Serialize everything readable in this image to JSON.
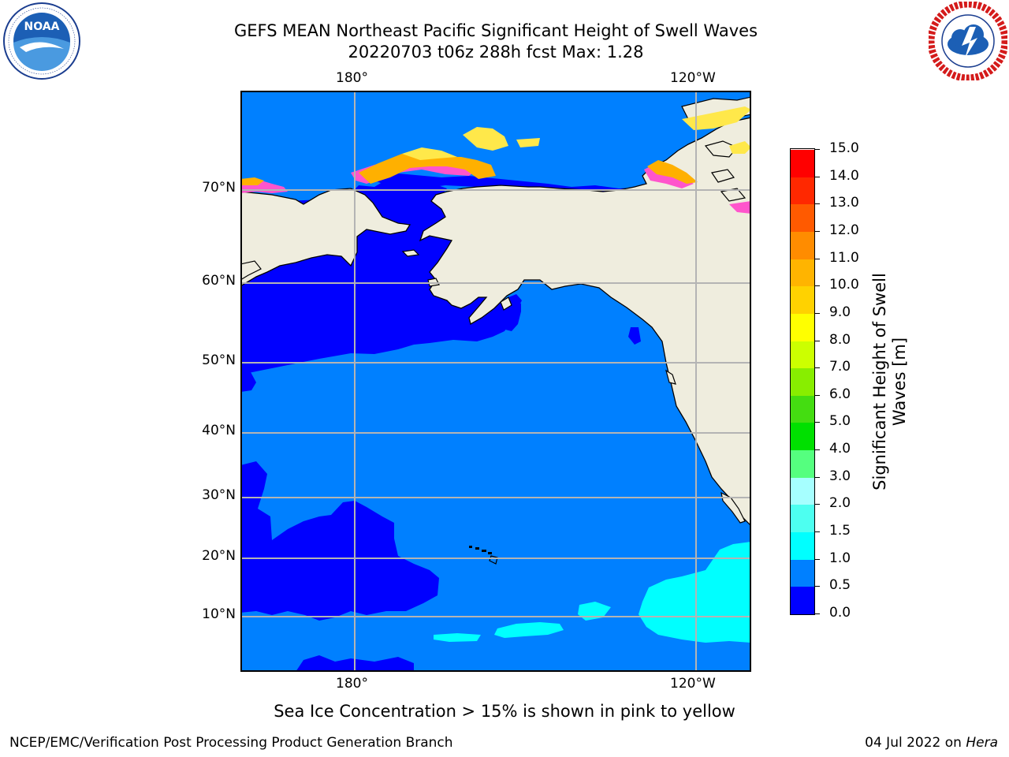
{
  "title_line1": "GEFS MEAN Northeast Pacific Significant Height of Swell Waves",
  "title_line2": "20220703 t06z 288h fcst   Max: 1.28",
  "logos": [
    {
      "name": "noaa-logo",
      "text": "NOAA",
      "ring_text": "NATIONAL OCEANIC AND ATMOSPHERIC ADMINISTRATION · U.S. DEPARTMENT OF COMMERCE"
    },
    {
      "name": "nws-logo",
      "ring_text": "NATIONAL WEATHER SERVICE"
    }
  ],
  "map": {
    "lon_labels_top": [
      "180°",
      "120°W"
    ],
    "lon_labels_bottom": [
      "180°",
      "120°W"
    ],
    "lat_labels": [
      "70°N",
      "60°N",
      "50°N",
      "40°N",
      "30°N",
      "20°N",
      "10°N"
    ],
    "colors": {
      "land": "#efedde",
      "band_0_05": "#0000ff",
      "band_05_10": "#0080ff",
      "band_10_15": "#00ffff",
      "gridline": "#b4b4b4",
      "ice_pink": "#ff55cc",
      "ice_orange": "#ffb000",
      "ice_yellow": "#ffe84a"
    }
  },
  "colorbar": {
    "title_line1": "Significant Height of Swell",
    "title_line2": "Waves [m]",
    "tick_labels": [
      "0.0",
      "0.5",
      "1.0",
      "1.5",
      "2.0",
      "3.0",
      "4.0",
      "5.0",
      "6.0",
      "7.0",
      "8.0",
      "9.0",
      "10.0",
      "11.0",
      "12.0",
      "13.0",
      "14.0",
      "15.0"
    ],
    "colors": [
      "#0000ff",
      "#0080ff",
      "#00ffff",
      "#4dfff0",
      "#a6ffff",
      "#55ff7f",
      "#00e000",
      "#44dd11",
      "#88ee00",
      "#ccff00",
      "#ffff00",
      "#ffd200",
      "#ffb400",
      "#ff8c00",
      "#ff5a00",
      "#ff2800",
      "#ff0000"
    ]
  },
  "note": "Sea Ice Concentration > 15% is shown in pink to yellow",
  "footer_left": "NCEP/EMC/Verification Post Processing Product Generation Branch",
  "footer_right_prefix": "04 Jul 2022 on ",
  "footer_right_host": "Hera"
}
